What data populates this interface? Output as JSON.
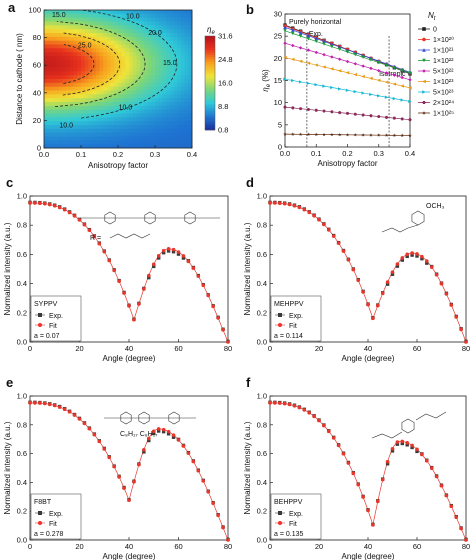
{
  "figure": {
    "panels": [
      "a",
      "b",
      "c",
      "d",
      "e",
      "f"
    ]
  },
  "chart_data": [
    {
      "panel": "a",
      "type": "heatmap",
      "xlabel": "Anisotropy factor",
      "ylabel": "Distance to cathode ( nm)",
      "xlim": [
        0,
        0.4
      ],
      "ylim": [
        0,
        100
      ],
      "xticks": [
        "0.0",
        "0.1",
        "0.2",
        "0.3",
        "0.4"
      ],
      "yticks": [
        "0",
        "20",
        "40",
        "60",
        "80",
        "100"
      ],
      "colorbar": {
        "title": "η_e",
        "ticks": [
          "31.6",
          "24.8",
          "16.0",
          "8.8",
          "0.8"
        ],
        "range": [
          0.8,
          31.6
        ],
        "colors": [
          "#1a2f9b",
          "#1f75d2",
          "#2fc9d8",
          "#7cd67a",
          "#f0e43a",
          "#f7a21e",
          "#e8321e",
          "#b5121a"
        ]
      },
      "contour_labels": [
        "15.0",
        "10.0",
        "25.0",
        "20.0",
        "15.0",
        "10.0",
        "10.0"
      ],
      "peak": {
        "x": 0.0,
        "y": 60,
        "value": 31.6
      }
    },
    {
      "panel": "b",
      "type": "line",
      "xlabel": "Anisotropy factor",
      "ylabel": "η_e (%)",
      "xlim": [
        0,
        0.4
      ],
      "ylim": [
        0,
        30
      ],
      "xticks": [
        "0.0",
        "0.1",
        "0.2",
        "0.3",
        "0.4"
      ],
      "yticks": [
        "0",
        "5",
        "10",
        "15",
        "20",
        "25",
        "30"
      ],
      "legend_title": "N_t",
      "legend_position": "top-right",
      "annotations": [
        {
          "text": "Purely horizontal",
          "x": 0.0
        },
        {
          "text": "Exp.",
          "x": 0.07
        },
        {
          "text": "Isotropic",
          "x": 0.333
        }
      ],
      "x": [
        0,
        0.025,
        0.05,
        0.075,
        0.1,
        0.125,
        0.15,
        0.175,
        0.2,
        0.225,
        0.25,
        0.275,
        0.3,
        0.325,
        0.35,
        0.375,
        0.4
      ],
      "series": [
        {
          "name": "0",
          "color": "#222222",
          "marker": "square",
          "y0": 27.5
        },
        {
          "name": "1×10²⁰",
          "color": "#e8362b",
          "marker": "circle",
          "y0": 27.3
        },
        {
          "name": "1×10²¹",
          "color": "#2e4bd6",
          "marker": "triangle",
          "y0": 27.0
        },
        {
          "name": "1×10²²",
          "color": "#1b9a3c",
          "marker": "triangle-down",
          "y0": 26.2
        },
        {
          "name": "5×10²²",
          "color": "#c01fb0",
          "marker": "diamond",
          "y0": 23.4
        },
        {
          "name": "1×10²³",
          "color": "#e89a16",
          "marker": "triangle-left",
          "y0": 20.2
        },
        {
          "name": "5×10²³",
          "color": "#16b8d6",
          "marker": "triangle-right",
          "y0": 15.3
        },
        {
          "name": "2×10²⁴",
          "color": "#8a2a5a",
          "marker": "hexagon",
          "y0": 9.0
        },
        {
          "name": "1×10²⁵",
          "color": "#5c2a0f",
          "marker": "star",
          "y0": 2.9
        }
      ]
    },
    {
      "panel": "c",
      "type": "scatter",
      "sample": "SYPPV",
      "a_label": "a = 0.07",
      "xlabel": "Angle (degree)",
      "ylabel": "Normalized intensity (a.u.)",
      "xlim": [
        0,
        80
      ],
      "ylim": [
        0,
        1.05
      ],
      "xticks": [
        "0",
        "20",
        "40",
        "60",
        "80"
      ],
      "yticks": [
        "0.0",
        "0.2",
        "0.4",
        "0.6",
        "0.8",
        "1.0"
      ],
      "legend": [
        "Exp.",
        "Fit"
      ],
      "min_angle": 42,
      "min_value": 0.16,
      "peak_angle": 56,
      "peak_value": 0.67,
      "chem_label": "R ="
    },
    {
      "panel": "d",
      "type": "scatter",
      "sample": "MEHPPV",
      "a_label": "a = 0.114",
      "xlabel": "Angle (degree)",
      "ylabel": "Normalized intensity (a.u.)",
      "xlim": [
        0,
        80
      ],
      "ylim": [
        0,
        1.05
      ],
      "xticks": [
        "0",
        "20",
        "40",
        "60",
        "80"
      ],
      "yticks": [
        "0.0",
        "0.2",
        "0.4",
        "0.6",
        "0.8",
        "1.0"
      ],
      "legend": [
        "Exp.",
        "Fit"
      ],
      "min_angle": 42,
      "min_value": 0.17,
      "peak_angle": 58,
      "peak_value": 0.64,
      "chem_label": "OCH₃"
    },
    {
      "panel": "e",
      "type": "scatter",
      "sample": "F8BT",
      "a_label": "a = 0.278",
      "xlabel": "Angle (degree)",
      "ylabel": "Normalized intensity (a.u.)",
      "xlim": [
        0,
        80
      ],
      "ylim": [
        0,
        1.05
      ],
      "xticks": [
        "0",
        "20",
        "40",
        "60",
        "80"
      ],
      "yticks": [
        "0.0",
        "0.2",
        "0.4",
        "0.6",
        "0.8",
        "1.0"
      ],
      "legend": [
        "Exp.",
        "Fit"
      ],
      "min_angle": 40,
      "min_value": 0.29,
      "peak_angle": 52,
      "peak_value": 0.81,
      "chem_label": "C₈H₁₇ C₈H₁₇"
    },
    {
      "panel": "f",
      "type": "scatter",
      "sample": "BEHPPV",
      "a_label": "a = 0.135",
      "xlabel": "Angle (degree)",
      "ylabel": "Normalized intensity (a.u.)",
      "xlim": [
        0,
        80
      ],
      "ylim": [
        0,
        1.05
      ],
      "xticks": [
        "0",
        "20",
        "40",
        "60",
        "80"
      ],
      "yticks": [
        "0.0",
        "0.2",
        "0.4",
        "0.6",
        "0.8",
        "1.0"
      ],
      "legend": [
        "Exp.",
        "Fit"
      ],
      "min_angle": 42,
      "min_value": 0.11,
      "peak_angle": 53,
      "peak_value": 0.72,
      "chem_label": ""
    }
  ]
}
